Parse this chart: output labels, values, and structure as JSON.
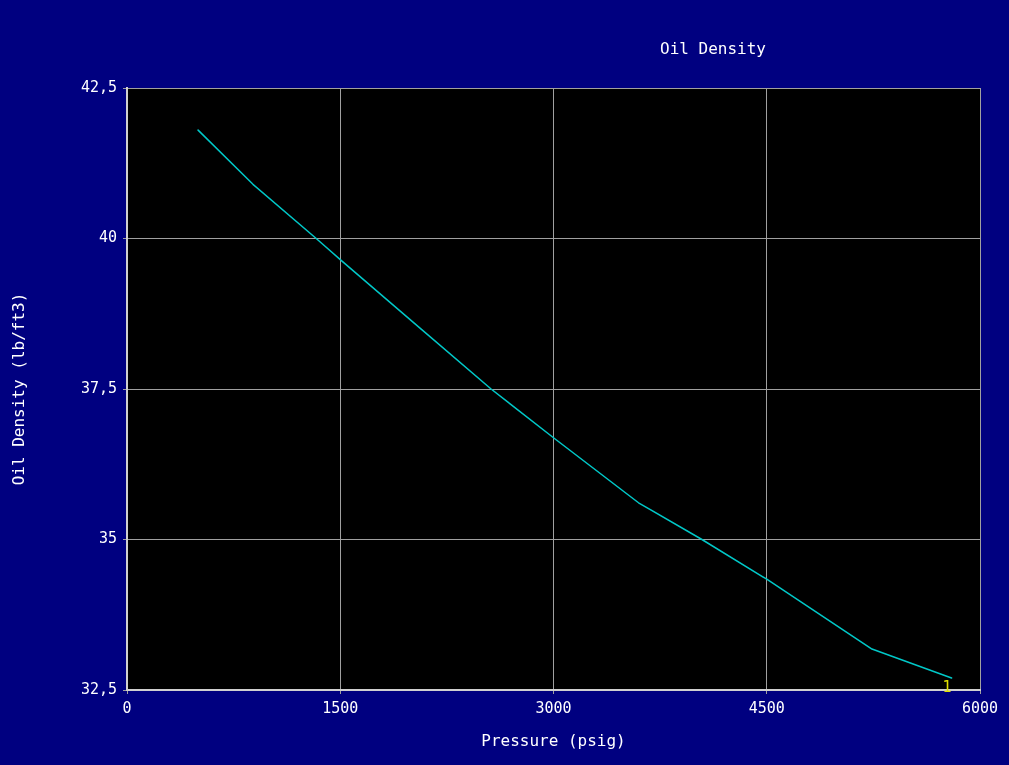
{
  "chart_data": {
    "type": "line",
    "title": "Oil Density",
    "xlabel": "Pressure (psig)",
    "ylabel": "Oil Density (lb/ft3)",
    "x": [
      500,
      886,
      1331,
      1500,
      2057,
      2561,
      3000,
      3598,
      4044,
      4500,
      5240,
      5800
    ],
    "series": [
      {
        "color": "#00c8c8",
        "values": [
          41.8,
          40.9,
          40,
          39.65,
          38.52,
          37.5,
          36.69,
          35.61,
          35,
          34.34,
          33.18,
          32.7
        ]
      }
    ],
    "xlim": [
      0,
      6000
    ],
    "xticks": [
      0,
      1500,
      3000,
      4500,
      6000
    ],
    "ylim": [
      32.5,
      42.5
    ],
    "yticks": [
      {
        "value": 32.5,
        "label": "32,5"
      },
      35,
      {
        "value": 37.5,
        "label": "37,5"
      },
      40,
      {
        "value": 42.5,
        "label": "42,5"
      }
    ],
    "grid": true,
    "legend": false,
    "marker": "none",
    "line_style": "solid",
    "annotations": [
      {
        "text": "1",
        "x": 5800,
        "y": 32.7
      }
    ]
  }
}
